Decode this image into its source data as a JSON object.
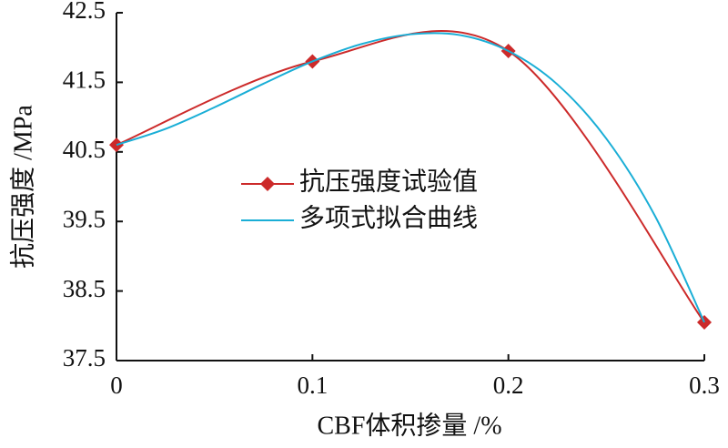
{
  "chart_data": {
    "type": "line",
    "xlabel": "CBF体积掺量 /%",
    "ylabel": "抗压强度 /MPa",
    "xlim": [
      0,
      0.3
    ],
    "xticks": [
      0,
      0.1,
      0.2,
      0.3
    ],
    "ylim": [
      37.5,
      42.5
    ],
    "yticks": [
      37.5,
      38.5,
      39.5,
      40.5,
      41.5,
      42.5
    ],
    "series": [
      {
        "name": "抗压强度试验值",
        "color": "#cc2a2a",
        "marker": "diamond",
        "x": [
          0,
          0.1,
          0.2,
          0.3
        ],
        "values": [
          40.6,
          41.8,
          41.95,
          38.05
        ]
      },
      {
        "name": "多项式拟合曲线",
        "color": "#1aaed6",
        "marker": "none",
        "x": [
          0,
          0.025,
          0.05,
          0.075,
          0.1,
          0.125,
          0.15,
          0.175,
          0.2,
          0.225,
          0.25,
          0.275,
          0.3
        ],
        "values": [
          40.6,
          40.83,
          41.14,
          41.48,
          41.8,
          42.05,
          42.19,
          42.18,
          41.95,
          41.47,
          40.69,
          39.57,
          38.05
        ]
      }
    ]
  }
}
